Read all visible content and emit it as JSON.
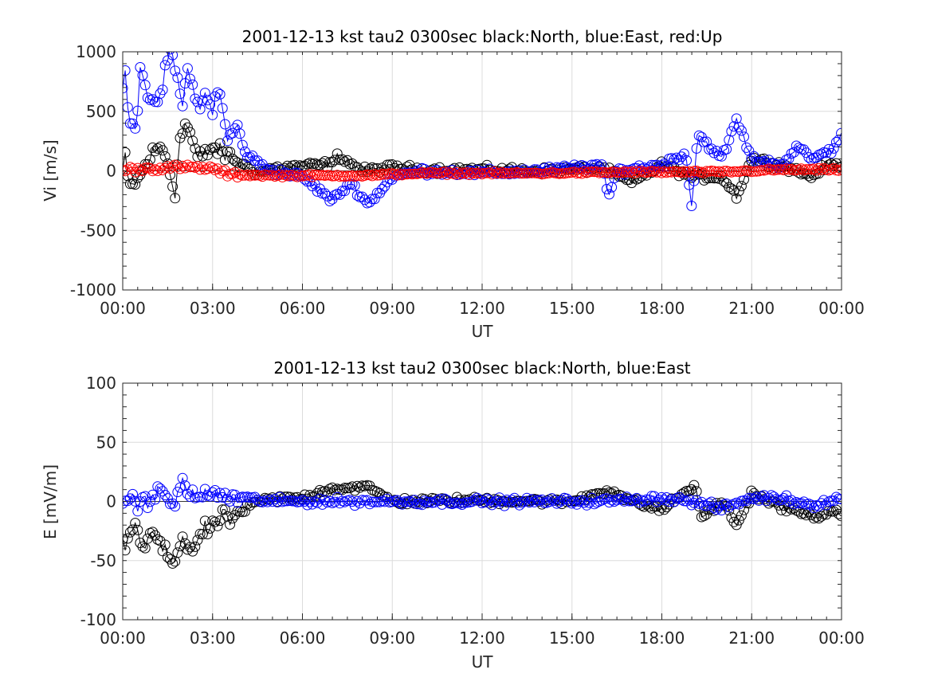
{
  "chart_data": [
    {
      "type": "scatter",
      "title": "2001-12-13 kst tau2 0300sec black:North, blue:East, red:Up",
      "xlabel": "UT",
      "ylabel": "Vi [m/s]",
      "ylim": [
        -1000,
        1000
      ],
      "yticks": [
        "1000",
        "500",
        "0",
        "-500",
        "-1000"
      ],
      "xticks": [
        "00:00",
        "03:00",
        "06:00",
        "09:00",
        "12:00",
        "15:00",
        "18:00",
        "21:00",
        "00:00"
      ],
      "xlim_hours": [
        0,
        24
      ],
      "grid": true,
      "sample_step_hours": 0.0833,
      "series": [
        {
          "name": "North",
          "color": "#000000",
          "marker": "circle",
          "key_points": [
            [
              0.0,
              0
            ],
            [
              0.1,
              120
            ],
            [
              0.2,
              -150
            ],
            [
              0.3,
              -120
            ],
            [
              0.5,
              -80
            ],
            [
              0.7,
              20
            ],
            [
              1.0,
              150
            ],
            [
              1.3,
              200
            ],
            [
              1.5,
              80
            ],
            [
              1.6,
              -50
            ],
            [
              1.75,
              -170
            ],
            [
              1.9,
              240
            ],
            [
              2.1,
              410
            ],
            [
              2.3,
              280
            ],
            [
              2.5,
              100
            ],
            [
              2.8,
              150
            ],
            [
              3.0,
              200
            ],
            [
              3.3,
              150
            ],
            [
              3.6,
              120
            ],
            [
              4.0,
              50
            ],
            [
              4.5,
              -20
            ],
            [
              5.0,
              20
            ],
            [
              6.0,
              40
            ],
            [
              7.0,
              60
            ],
            [
              7.2,
              130
            ],
            [
              8.0,
              0
            ],
            [
              9.0,
              30
            ],
            [
              10.0,
              10
            ],
            [
              12.0,
              10
            ],
            [
              14.0,
              0
            ],
            [
              16.0,
              20
            ],
            [
              17.0,
              -100
            ],
            [
              18.0,
              50
            ],
            [
              19.0,
              -50
            ],
            [
              20.0,
              -50
            ],
            [
              20.5,
              -210
            ],
            [
              21.0,
              100
            ],
            [
              22.0,
              50
            ],
            [
              23.0,
              -50
            ],
            [
              23.5,
              50
            ],
            [
              24.0,
              50
            ]
          ]
        },
        {
          "name": "East",
          "color": "#0000ff",
          "marker": "circle",
          "key_points": [
            [
              0.0,
              640
            ],
            [
              0.1,
              920
            ],
            [
              0.2,
              440
            ],
            [
              0.35,
              400
            ],
            [
              0.45,
              340
            ],
            [
              0.6,
              960
            ],
            [
              0.8,
              600
            ],
            [
              0.95,
              510
            ],
            [
              1.1,
              600
            ],
            [
              1.3,
              640
            ],
            [
              1.5,
              950
            ],
            [
              1.65,
              1000
            ],
            [
              1.8,
              800
            ],
            [
              2.0,
              520
            ],
            [
              2.1,
              760
            ],
            [
              2.2,
              930
            ],
            [
              2.4,
              590
            ],
            [
              2.6,
              520
            ],
            [
              2.8,
              680
            ],
            [
              3.0,
              490
            ],
            [
              3.2,
              700
            ],
            [
              3.5,
              260
            ],
            [
              3.8,
              380
            ],
            [
              4.1,
              150
            ],
            [
              4.6,
              50
            ],
            [
              5.0,
              0
            ],
            [
              6.0,
              -50
            ],
            [
              7.0,
              -250
            ],
            [
              7.6,
              -100
            ],
            [
              8.2,
              -280
            ],
            [
              9.0,
              -50
            ],
            [
              10.0,
              0
            ],
            [
              12.0,
              -20
            ],
            [
              14.0,
              0
            ],
            [
              16.0,
              50
            ],
            [
              16.2,
              -230
            ],
            [
              16.5,
              0
            ],
            [
              18.0,
              50
            ],
            [
              18.8,
              150
            ],
            [
              19.0,
              -310
            ],
            [
              19.2,
              310
            ],
            [
              20.0,
              100
            ],
            [
              20.5,
              430
            ],
            [
              21.0,
              100
            ],
            [
              22.0,
              50
            ],
            [
              22.5,
              200
            ],
            [
              23.0,
              100
            ],
            [
              23.7,
              180
            ],
            [
              24.0,
              300
            ]
          ]
        },
        {
          "name": "Up",
          "color": "#ff0000",
          "marker": "circle",
          "key_points": [
            [
              0.0,
              10
            ],
            [
              1.0,
              20
            ],
            [
              2.0,
              30
            ],
            [
              3.0,
              20
            ],
            [
              3.5,
              -30
            ],
            [
              5.0,
              -40
            ],
            [
              8.0,
              -40
            ],
            [
              10.0,
              -20
            ],
            [
              14.0,
              -20
            ],
            [
              17.0,
              -10
            ],
            [
              20.0,
              -10
            ],
            [
              22.0,
              10
            ],
            [
              24.0,
              10
            ]
          ]
        }
      ]
    },
    {
      "type": "scatter",
      "title": "2001-12-13 kst tau2 0300sec black:North, blue:East",
      "xlabel": "UT",
      "ylabel": "E [mV/m]",
      "ylim": [
        -100,
        100
      ],
      "yticks": [
        "100",
        "50",
        "0",
        "-50",
        "-100"
      ],
      "xticks": [
        "00:00",
        "03:00",
        "06:00",
        "09:00",
        "12:00",
        "15:00",
        "18:00",
        "21:00",
        "00:00"
      ],
      "xlim_hours": [
        0,
        24
      ],
      "grid": true,
      "sample_step_hours": 0.0833,
      "series": [
        {
          "name": "North",
          "color": "#000000",
          "marker": "circle",
          "key_points": [
            [
              0.0,
              -30
            ],
            [
              0.1,
              -43
            ],
            [
              0.3,
              -20
            ],
            [
              0.5,
              -25
            ],
            [
              0.7,
              -44
            ],
            [
              1.0,
              -24
            ],
            [
              1.3,
              -40
            ],
            [
              1.5,
              -46
            ],
            [
              1.7,
              -52
            ],
            [
              2.0,
              -30
            ],
            [
              2.3,
              -42
            ],
            [
              2.7,
              -25
            ],
            [
              3.0,
              -22
            ],
            [
              3.3,
              -13
            ],
            [
              3.6,
              -15
            ],
            [
              4.0,
              -8
            ],
            [
              4.5,
              0
            ],
            [
              5.0,
              2
            ],
            [
              6.0,
              3
            ],
            [
              6.9,
              11
            ],
            [
              8.2,
              12
            ],
            [
              9.0,
              0
            ],
            [
              12.0,
              1
            ],
            [
              15.0,
              0
            ],
            [
              16.2,
              10
            ],
            [
              17.0,
              0
            ],
            [
              18.0,
              -7
            ],
            [
              19.1,
              14
            ],
            [
              19.3,
              -14
            ],
            [
              20.0,
              0
            ],
            [
              20.5,
              -20
            ],
            [
              21.0,
              7
            ],
            [
              22.0,
              -5
            ],
            [
              23.0,
              -12
            ],
            [
              24.0,
              -10
            ]
          ]
        },
        {
          "name": "East",
          "color": "#0000ff",
          "marker": "circle",
          "key_points": [
            [
              0.0,
              0
            ],
            [
              0.2,
              3
            ],
            [
              0.5,
              -3
            ],
            [
              1.0,
              5
            ],
            [
              1.4,
              8
            ],
            [
              1.7,
              -6
            ],
            [
              2.0,
              18
            ],
            [
              2.3,
              5
            ],
            [
              2.7,
              3
            ],
            [
              3.0,
              8
            ],
            [
              3.5,
              3
            ],
            [
              4.0,
              3
            ],
            [
              5.0,
              0
            ],
            [
              8.0,
              0
            ],
            [
              12.0,
              0
            ],
            [
              16.0,
              0
            ],
            [
              18.0,
              3
            ],
            [
              19.0,
              0
            ],
            [
              20.0,
              -6
            ],
            [
              21.0,
              3
            ],
            [
              22.0,
              3
            ],
            [
              23.0,
              -3
            ],
            [
              24.0,
              3
            ]
          ]
        }
      ]
    }
  ]
}
